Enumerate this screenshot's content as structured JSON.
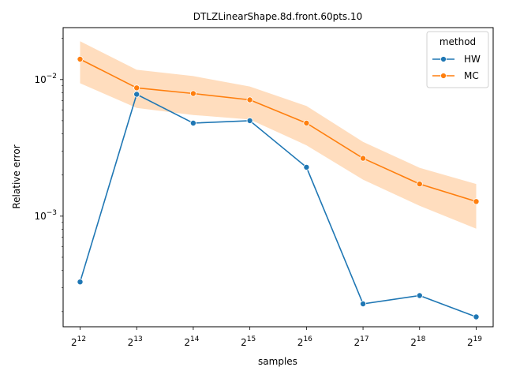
{
  "chart_data": {
    "type": "line",
    "title": "DTLZLinearShape.8d.front.60pts.10",
    "xlabel": "samples",
    "ylabel": "Relative error",
    "x_scale": "log2",
    "y_scale": "log10",
    "x": [
      4096,
      8192,
      16384,
      32768,
      65536,
      131072,
      262144,
      524288
    ],
    "x_ticks": [
      {
        "base": "2",
        "exp": "12"
      },
      {
        "base": "2",
        "exp": "13"
      },
      {
        "base": "2",
        "exp": "14"
      },
      {
        "base": "2",
        "exp": "15"
      },
      {
        "base": "2",
        "exp": "16"
      },
      {
        "base": "2",
        "exp": "17"
      },
      {
        "base": "2",
        "exp": "18"
      },
      {
        "base": "2",
        "exp": "19"
      }
    ],
    "y_ticks": [
      {
        "value": 0.01,
        "base": "10",
        "exp": "−2"
      },
      {
        "value": 0.001,
        "base": "10",
        "exp": "−3"
      }
    ],
    "ylim": [
      0.000155,
      0.024
    ],
    "grid": false,
    "legend": {
      "title": "method",
      "position": "top-right"
    },
    "series": [
      {
        "name": "HW",
        "color": "#1f77b4",
        "values": [
          0.00033,
          0.0078,
          0.0048,
          0.005,
          0.00228,
          0.000228,
          0.000262,
          0.000183
        ]
      },
      {
        "name": "MC",
        "color": "#ff7f0e",
        "band_color": "#ffd7b3",
        "values": [
          0.0141,
          0.0087,
          0.0079,
          0.0071,
          0.0048,
          0.00265,
          0.00172,
          0.00128
        ],
        "lower": [
          0.0094,
          0.0062,
          0.0055,
          0.0051,
          0.0033,
          0.00185,
          0.00119,
          0.00081
        ],
        "upper": [
          0.0191,
          0.0118,
          0.0106,
          0.0089,
          0.0064,
          0.0035,
          0.00226,
          0.00172
        ]
      }
    ]
  }
}
